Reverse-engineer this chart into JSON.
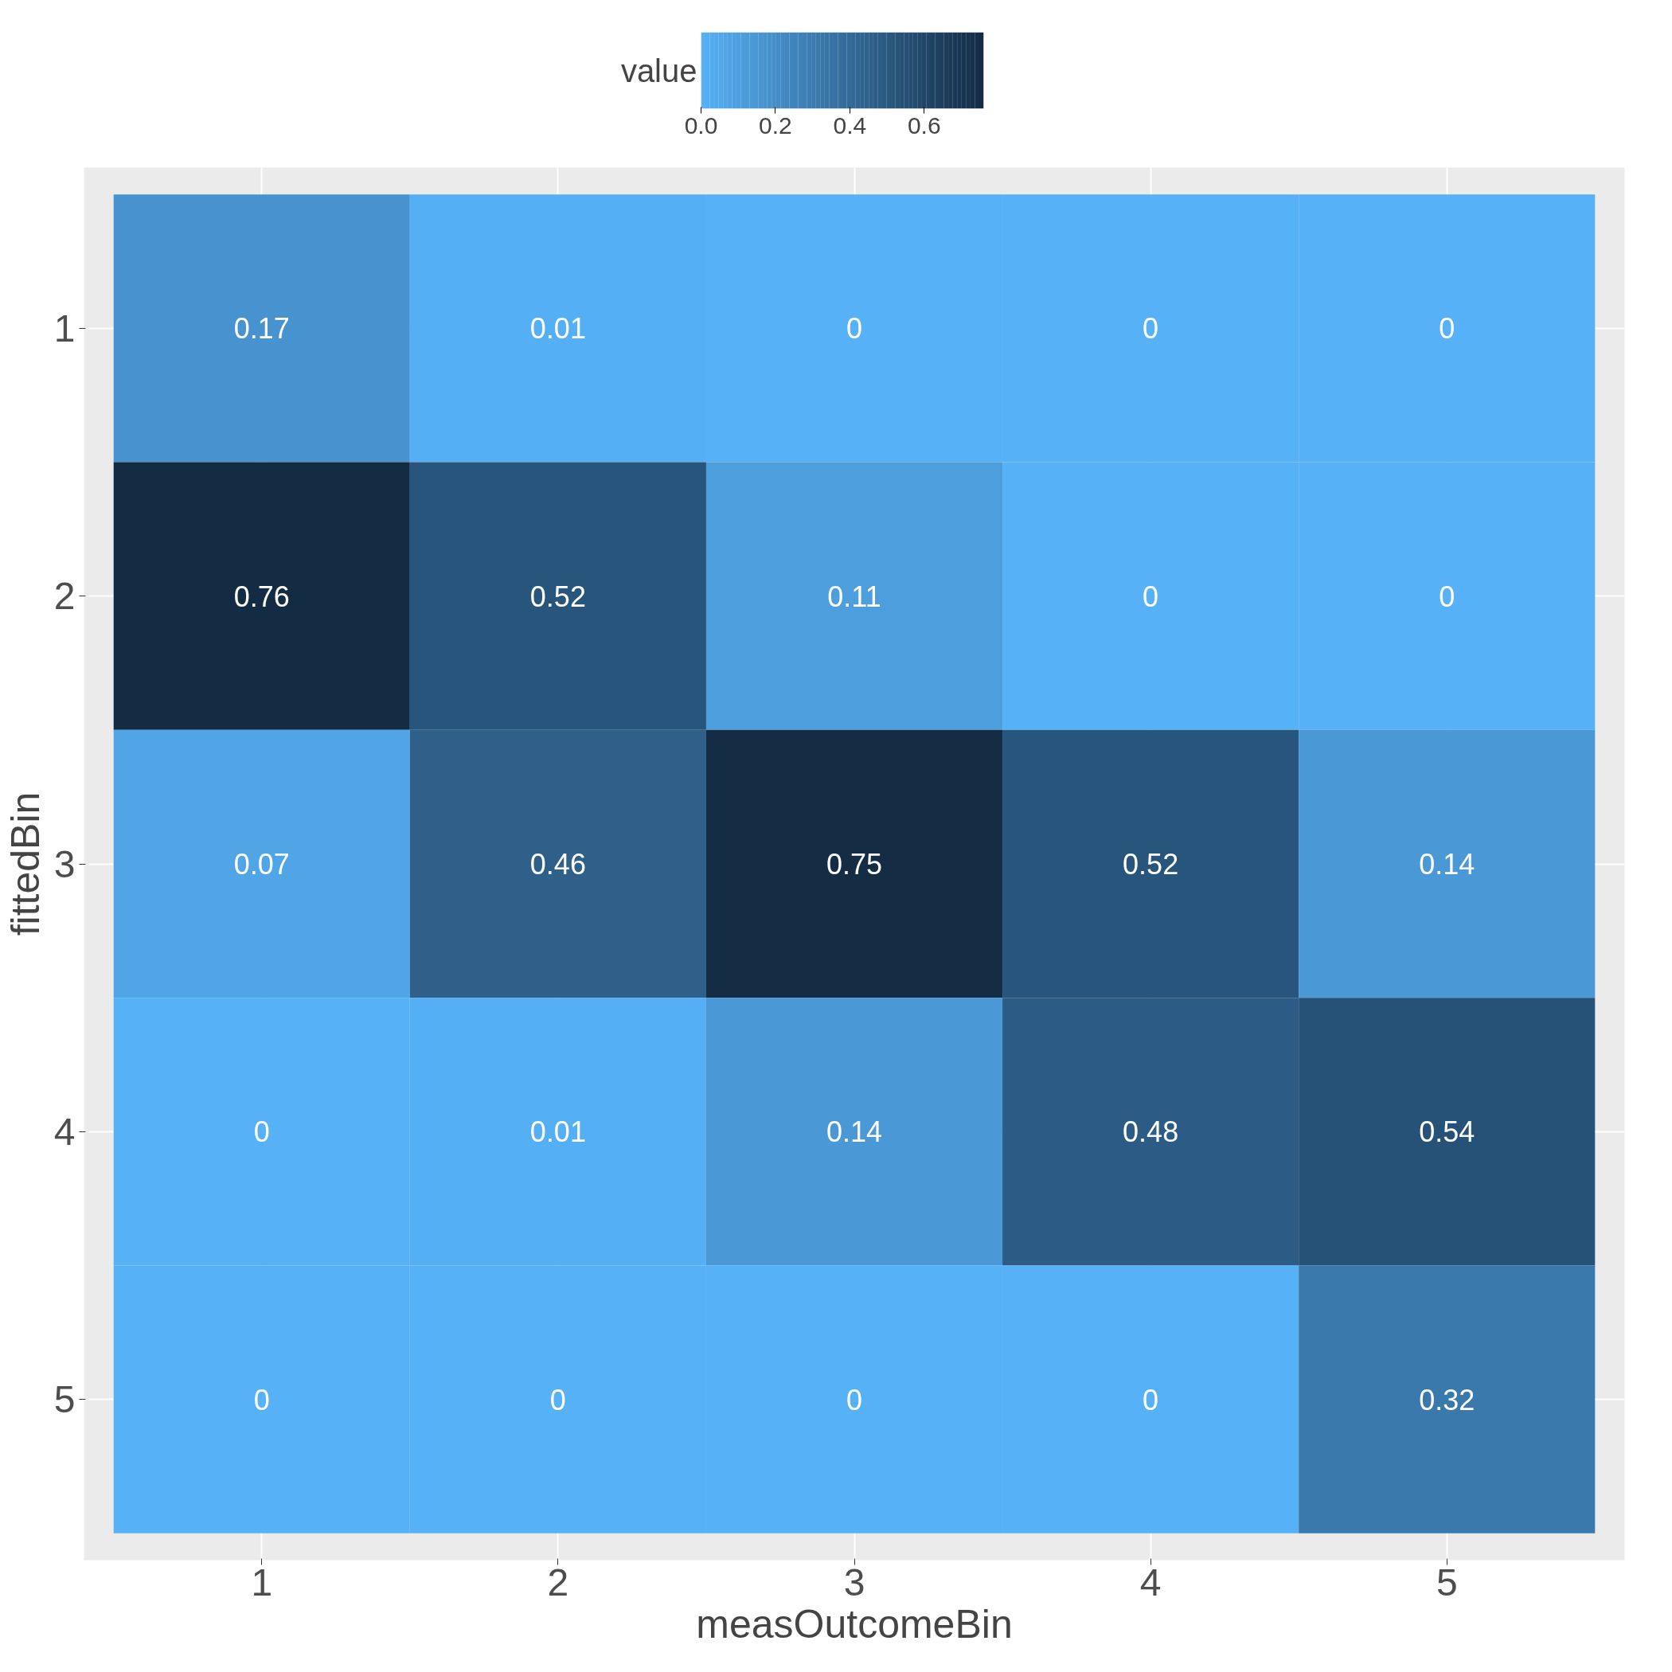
{
  "chart_data": {
    "type": "heatmap",
    "xlabel": "measOutcomeBin",
    "ylabel": "fittedBin",
    "clabel": "value",
    "categories": [
      "1",
      "2",
      "3",
      "4",
      "5"
    ],
    "y_categories": [
      "1",
      "2",
      "3",
      "4",
      "5"
    ],
    "cells": [
      [
        0.17,
        0.01,
        0,
        0,
        0
      ],
      [
        0.76,
        0.52,
        0.11,
        0,
        0
      ],
      [
        0.07,
        0.46,
        0.75,
        0.52,
        0.14
      ],
      [
        0,
        0.01,
        0.14,
        0.48,
        0.54
      ],
      [
        0,
        0,
        0,
        0,
        0.32
      ]
    ],
    "clim": [
      0,
      0.76
    ],
    "cticks": [
      {
        "value": 0,
        "label": "0.0"
      },
      {
        "value": 0.2,
        "label": "0.2"
      },
      {
        "value": 0.4,
        "label": "0.4"
      },
      {
        "value": 0.6,
        "label": "0.6"
      }
    ],
    "colors": [
      "#56b1f7",
      "#132b43"
    ],
    "data_labels": true,
    "grid": true
  }
}
